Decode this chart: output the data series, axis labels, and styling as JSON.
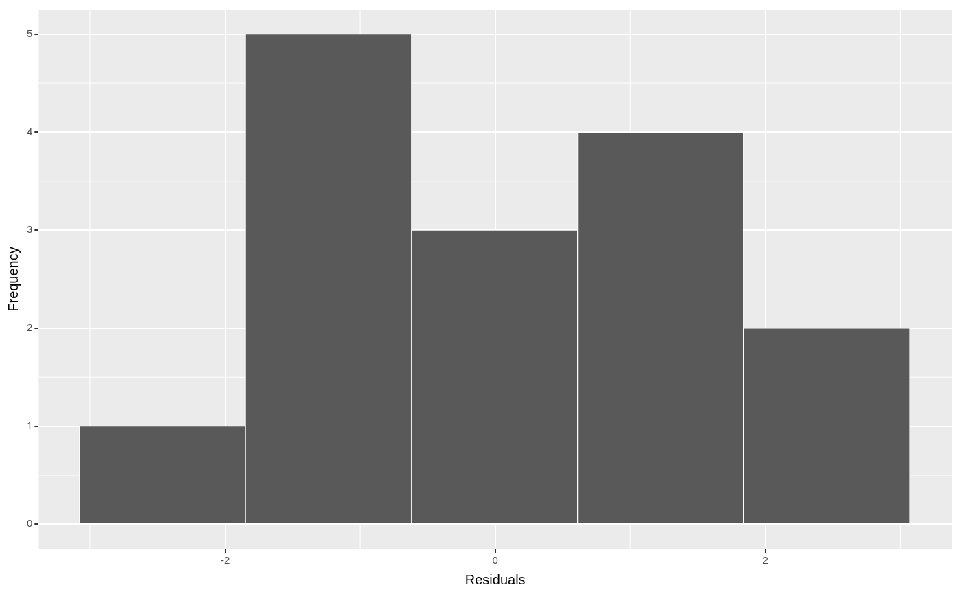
{
  "chart_data": {
    "type": "histogram",
    "xlabel": "Residuals",
    "ylabel": "Frequency",
    "bins": [
      -3.08,
      -1.85,
      -0.62,
      0.61,
      1.84,
      3.07
    ],
    "values": [
      1,
      5,
      3,
      4,
      2
    ],
    "color": "#595959",
    "xlim": [
      -3.38,
      3.38
    ],
    "ylim": [
      -0.25,
      5.25
    ],
    "xticks": [
      -2,
      0,
      2
    ],
    "yticks": [
      0,
      1,
      2,
      3,
      4,
      5
    ],
    "grid": true
  }
}
